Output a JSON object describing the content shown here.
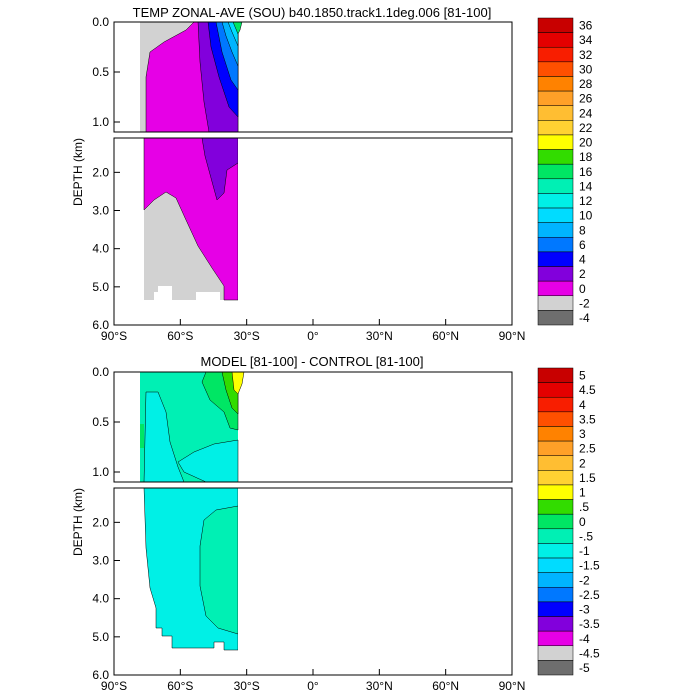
{
  "chart_data": [
    {
      "type": "heatmap",
      "title": "TEMP ZONAL-AVE (SOU) b40.1850.track1.1deg.006 [81-100]",
      "ylabel": "DEPTH (km)",
      "xlabel": "",
      "x_ticks": [
        "90°S",
        "60°S",
        "30°S",
        "0°",
        "30°N",
        "60°N",
        "90°N"
      ],
      "y_ticks_upper": [
        "0.0",
        "0.5",
        "1.0"
      ],
      "y_ticks_lower": [
        "2.0",
        "3.0",
        "4.0",
        "5.0",
        "6.0"
      ],
      "xlim": [
        -90,
        90
      ],
      "ylim_upper": [
        0,
        1.1
      ],
      "ylim_lower": [
        1.1,
        6.0
      ],
      "colorbar_labels": [
        "36",
        "34",
        "32",
        "30",
        "28",
        "26",
        "24",
        "22",
        "20",
        "18",
        "16",
        "14",
        "12",
        "10",
        "8",
        "6",
        "4",
        "2",
        "0",
        "-2",
        "-4"
      ],
      "colorbar_colors": [
        "#c80000",
        "#e40000",
        "#f81e00",
        "#ff5000",
        "#ff8200",
        "#ffa028",
        "#ffbe32",
        "#ffd232",
        "#ffff00",
        "#32dc00",
        "#00e664",
        "#00f0b4",
        "#00f0e6",
        "#00dcff",
        "#00b4ff",
        "#0078ff",
        "#0000ff",
        "#8200dc",
        "#e600e6",
        "#d2d2d2",
        "#6e6e6e"
      ]
    },
    {
      "type": "heatmap",
      "title": "MODEL [81-100] - CONTROL [81-100]",
      "ylabel": "DEPTH (km)",
      "xlabel": "",
      "x_ticks": [
        "90°S",
        "60°S",
        "30°S",
        "0°",
        "30°N",
        "60°N",
        "90°N"
      ],
      "y_ticks_upper": [
        "0.0",
        "0.5",
        "1.0"
      ],
      "y_ticks_lower": [
        "2.0",
        "3.0",
        "4.0",
        "5.0",
        "6.0"
      ],
      "xlim": [
        -90,
        90
      ],
      "ylim_upper": [
        0,
        1.1
      ],
      "ylim_lower": [
        1.1,
        6.0
      ],
      "colorbar_labels": [
        "5",
        "4.5",
        "4",
        "3.5",
        "3",
        "2.5",
        "2",
        "1.5",
        "1",
        ".5",
        "0",
        "-.5",
        "-1",
        "-1.5",
        "-2",
        "-2.5",
        "-3",
        "-3.5",
        "-4",
        "-4.5",
        "-5"
      ],
      "colorbar_colors": [
        "#c80000",
        "#e40000",
        "#f81e00",
        "#ff5000",
        "#ff8200",
        "#ffa028",
        "#ffbe32",
        "#ffd232",
        "#ffff00",
        "#32dc00",
        "#00e664",
        "#00f0b4",
        "#00f0e6",
        "#00dcff",
        "#00b4ff",
        "#0078ff",
        "#0000ff",
        "#8200dc",
        "#e600e6",
        "#d2d2d2",
        "#6e6e6e"
      ]
    }
  ]
}
